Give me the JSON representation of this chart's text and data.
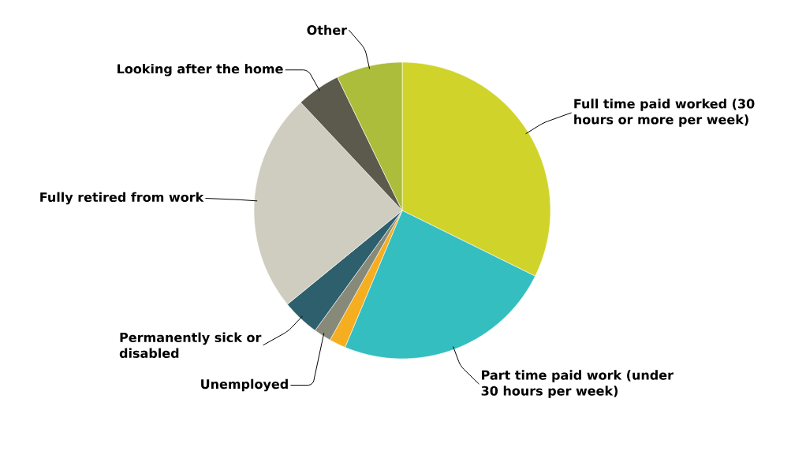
{
  "chart_data": {
    "type": "pie",
    "categories": [
      "Full time paid worked (30 hours or more per week)",
      "Part time paid work (under 30 hours per week)",
      null,
      "Unemployed",
      "Permanently sick or disabled",
      "Fully retired from work",
      "Looking after the home",
      "Other"
    ],
    "values": [
      32.3,
      24,
      1.8,
      1.9,
      4.1,
      23.9,
      4.8,
      7.2
    ],
    "colors": [
      "#d0d42a",
      "#34bec0",
      "#f5ae1f",
      "#878a78",
      "#2e5f6c",
      "#cfcdc0",
      "#5b5a4c",
      "#abbd3a"
    ]
  }
}
